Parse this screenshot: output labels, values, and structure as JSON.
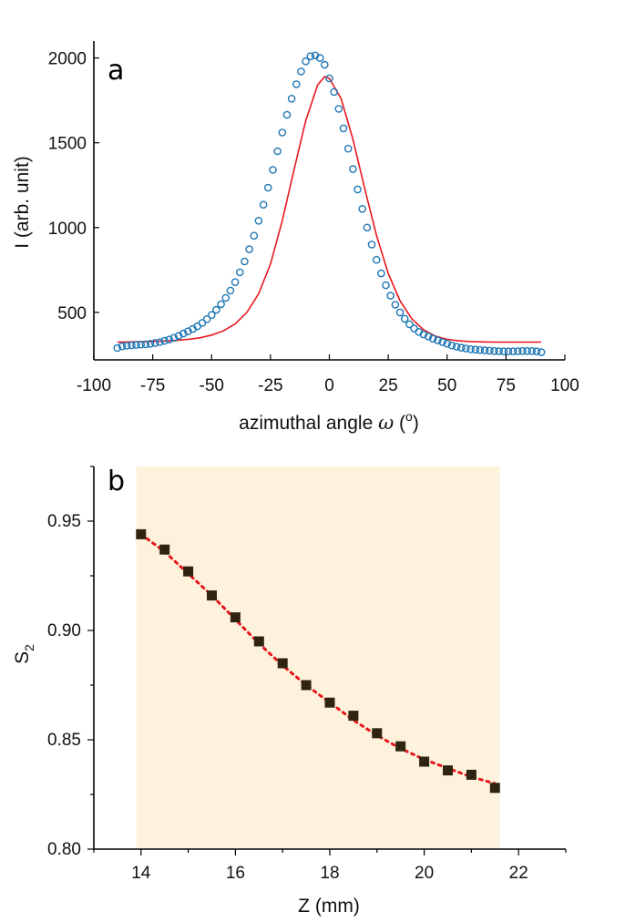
{
  "chart_data": [
    {
      "type": "scatter",
      "panel_label": "a",
      "xlabel": "azimuthal angle ω (°)",
      "xlabel_parts": {
        "prefix": "azimuthal angle ",
        "symbol": "ω",
        "open": " (",
        "sup": "o",
        "close": ")"
      },
      "ylabel": "I (arb. unit)",
      "xlim": [
        -100,
        100
      ],
      "ylim": [
        220,
        2100
      ],
      "xticks": [
        -100,
        -75,
        -50,
        -25,
        0,
        25,
        50,
        75,
        100
      ],
      "xtick_labels": [
        "-100",
        "-75",
        "-50",
        "-25",
        "0",
        "25",
        "50",
        "75",
        "100"
      ],
      "yticks": [
        500,
        1000,
        1500,
        2000
      ],
      "ytick_labels": [
        "500",
        "1000",
        "1500",
        "2000"
      ],
      "colors": {
        "points": "#1f77b4",
        "fit": "#e8161c"
      },
      "series": [
        {
          "kind": "points",
          "x": [
            -90,
            -88,
            -86,
            -84,
            -82,
            -80,
            -78,
            -76,
            -74,
            -72,
            -70,
            -68,
            -66,
            -64,
            -62,
            -60,
            -58,
            -56,
            -54,
            -52,
            -50,
            -48,
            -46,
            -44,
            -42,
            -40,
            -38,
            -36,
            -34,
            -32,
            -30,
            -28,
            -26,
            -24,
            -22,
            -20,
            -18,
            -16,
            -14,
            -12,
            -10,
            -8,
            -6,
            -4,
            -2,
            0,
            2,
            4,
            6,
            8,
            10,
            12,
            14,
            16,
            18,
            20,
            22,
            24,
            26,
            28,
            30,
            32,
            34,
            36,
            38,
            40,
            42,
            44,
            46,
            48,
            50,
            52,
            54,
            56,
            58,
            60,
            62,
            64,
            66,
            68,
            70,
            72,
            74,
            76,
            78,
            80,
            82,
            84,
            86,
            88,
            90
          ],
          "y": [
            290,
            300,
            303,
            306,
            308,
            310,
            312,
            315,
            320,
            325,
            332,
            340,
            350,
            362,
            375,
            388,
            402,
            418,
            438,
            460,
            485,
            515,
            548,
            585,
            628,
            678,
            736,
            800,
            872,
            952,
            1040,
            1135,
            1235,
            1340,
            1450,
            1560,
            1665,
            1760,
            1845,
            1920,
            1980,
            2010,
            2015,
            2000,
            1960,
            1880,
            1800,
            1700,
            1585,
            1465,
            1345,
            1225,
            1110,
            1000,
            900,
            810,
            730,
            660,
            598,
            545,
            500,
            462,
            430,
            405,
            385,
            370,
            358,
            345,
            335,
            325,
            315,
            305,
            298,
            292,
            287,
            283,
            280,
            278,
            276,
            274,
            272,
            271,
            270,
            270,
            270,
            271,
            272,
            272,
            272,
            270,
            265
          ]
        },
        {
          "kind": "fit",
          "x": [
            -90,
            -85,
            -80,
            -75,
            -70,
            -65,
            -60,
            -55,
            -50,
            -45,
            -40,
            -35,
            -30,
            -25,
            -20,
            -15,
            -10,
            -5,
            -2,
            0,
            5,
            10,
            15,
            20,
            25,
            30,
            35,
            40,
            45,
            50,
            55,
            60,
            65,
            70,
            75,
            80,
            85,
            90
          ],
          "y": [
            325,
            326,
            327,
            329,
            331,
            335,
            341,
            350,
            366,
            391,
            432,
            500,
            610,
            785,
            1040,
            1340,
            1630,
            1840,
            1890,
            1880,
            1760,
            1520,
            1230,
            955,
            730,
            568,
            462,
            397,
            360,
            341,
            332,
            328,
            326,
            325,
            325,
            325,
            325,
            325
          ]
        }
      ]
    },
    {
      "type": "scatter",
      "panel_label": "b",
      "xlabel": "Z (mm)",
      "ylabel": "S2",
      "ylabel_parts": {
        "base": "S",
        "sub": "2"
      },
      "xlim": [
        13,
        23
      ],
      "ylim": [
        0.8,
        0.975
      ],
      "xticks": [
        14,
        16,
        18,
        20,
        22
      ],
      "xtick_labels": [
        "14",
        "16",
        "18",
        "20",
        "22"
      ],
      "yticks": [
        0.8,
        0.85,
        0.9,
        0.95
      ],
      "ytick_labels": [
        "0.80",
        "0.85",
        "0.90",
        "0.95"
      ],
      "shaded_region": {
        "x": [
          13.9,
          21.6
        ],
        "color": "#fdf3dc"
      },
      "colors": {
        "markers": "#2e2410",
        "fit": "#e8161c"
      },
      "series": [
        {
          "kind": "markers",
          "x": [
            14.0,
            14.5,
            15.0,
            15.5,
            16.0,
            16.5,
            17.0,
            17.5,
            18.0,
            18.5,
            19.0,
            19.5,
            20.0,
            20.5,
            21.0,
            21.5
          ],
          "y": [
            0.944,
            0.937,
            0.927,
            0.916,
            0.906,
            0.895,
            0.885,
            0.875,
            0.867,
            0.861,
            0.853,
            0.847,
            0.84,
            0.836,
            0.834,
            0.828
          ]
        },
        {
          "kind": "fit",
          "x": [
            14.0,
            14.5,
            15.0,
            15.5,
            16.0,
            16.5,
            17.0,
            17.5,
            18.0,
            18.5,
            19.0,
            19.5,
            20.0,
            20.5,
            21.0,
            21.5
          ],
          "y": [
            0.944,
            0.936,
            0.926,
            0.916,
            0.905,
            0.894,
            0.884,
            0.875,
            0.867,
            0.859,
            0.852,
            0.846,
            0.841,
            0.837,
            0.833,
            0.83
          ]
        }
      ]
    }
  ]
}
